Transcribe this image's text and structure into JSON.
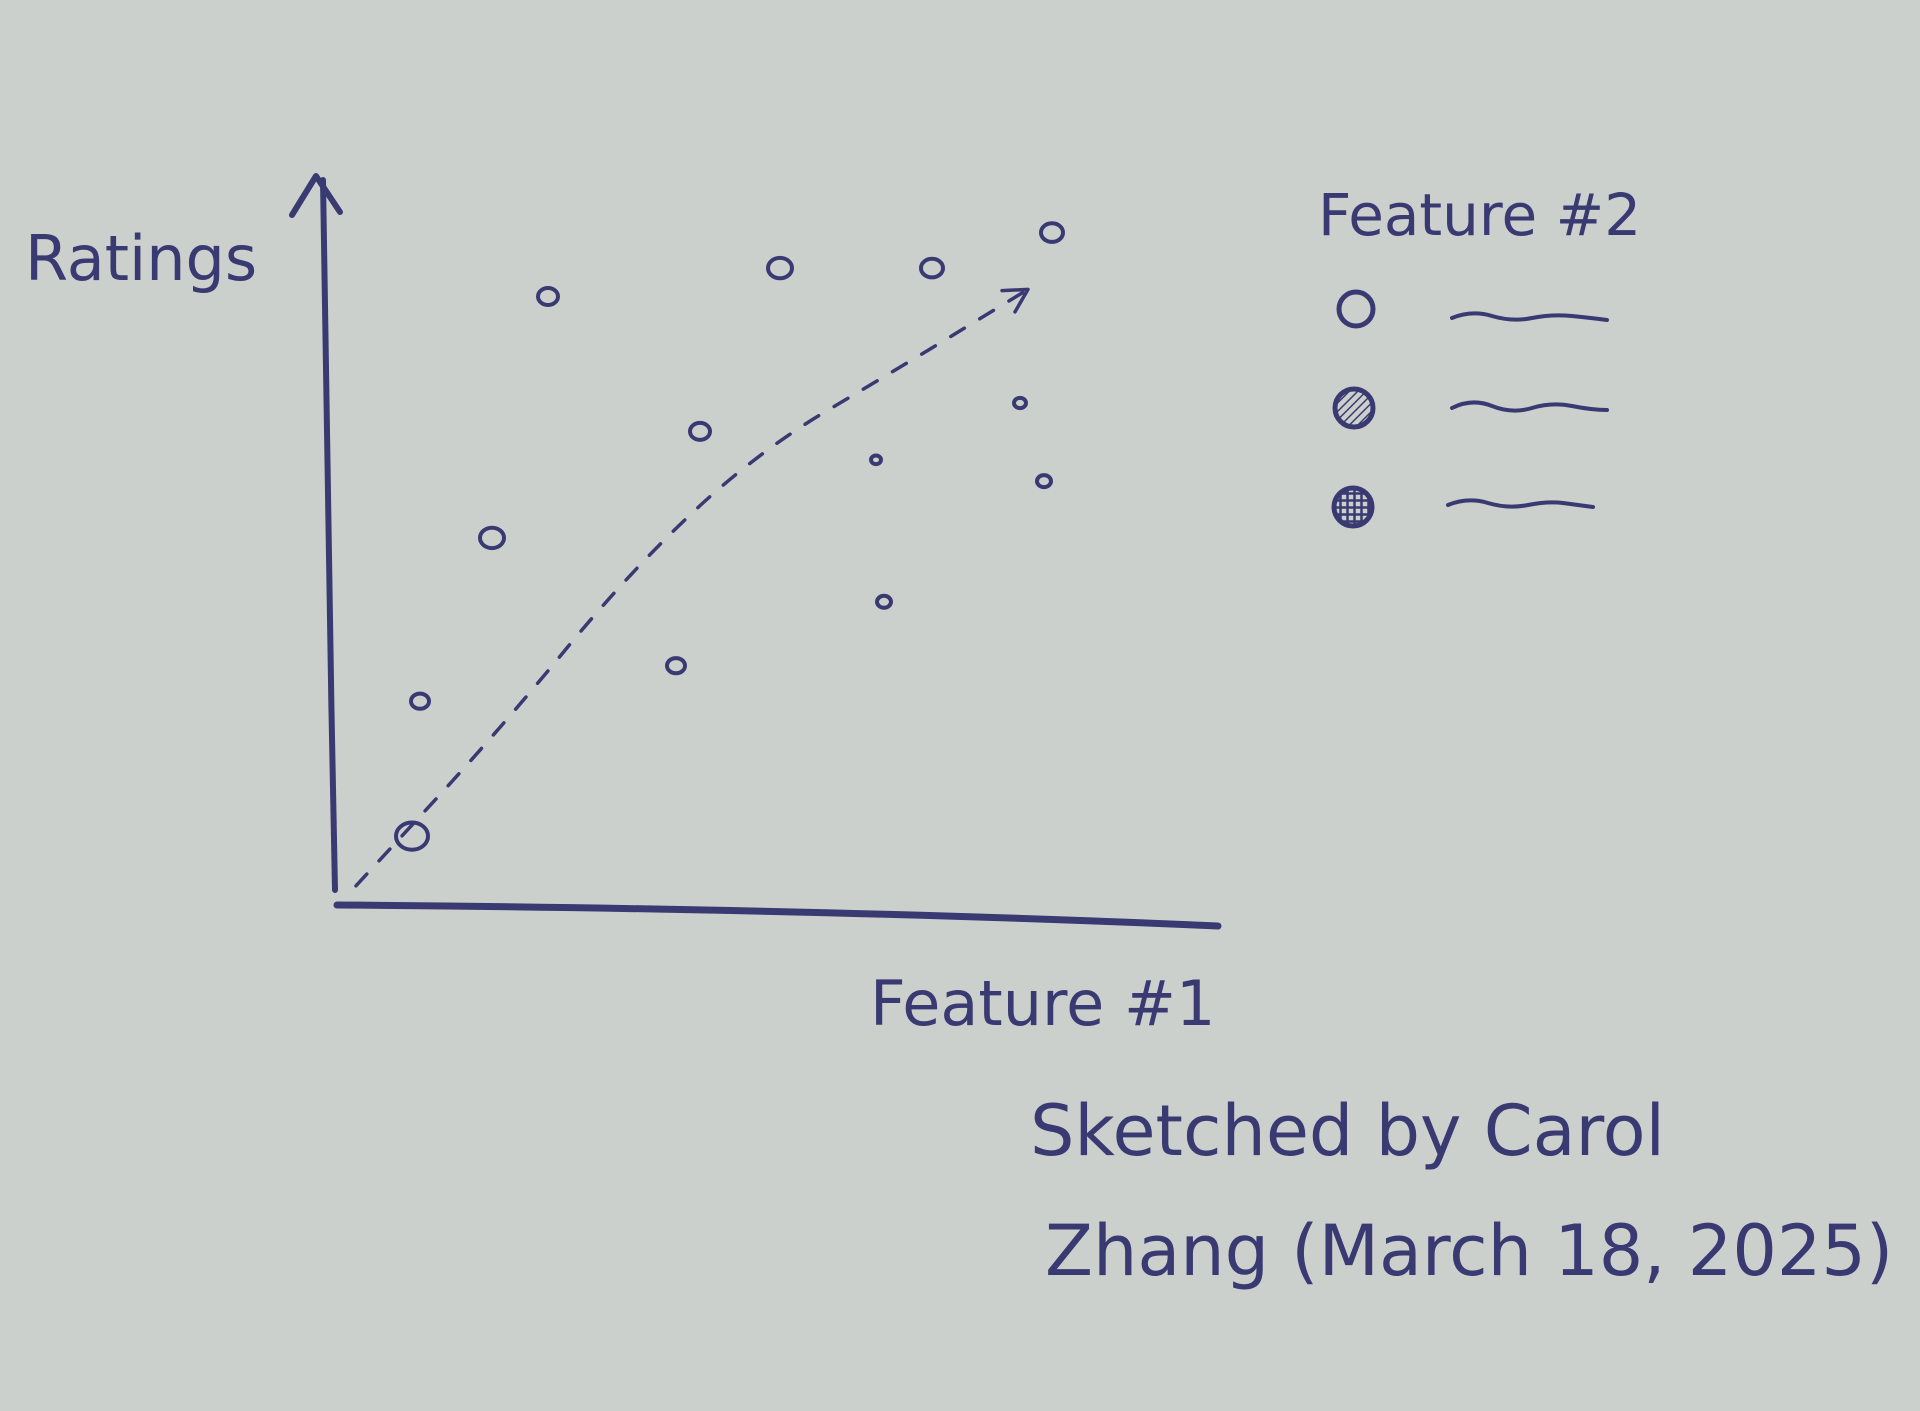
{
  "chart_data": {
    "type": "scatter",
    "title": "",
    "xlabel": "Feature #1",
    "ylabel": "Ratings",
    "xlim": [
      0,
      10
    ],
    "ylim": [
      0,
      10
    ],
    "grid": false,
    "points": [
      {
        "x": 0.9,
        "y": 0.9
      },
      {
        "x": 1.0,
        "y": 2.8
      },
      {
        "x": 1.9,
        "y": 5.1
      },
      {
        "x": 2.6,
        "y": 8.5
      },
      {
        "x": 4.2,
        "y": 3.3
      },
      {
        "x": 4.5,
        "y": 6.6
      },
      {
        "x": 5.5,
        "y": 8.9
      },
      {
        "x": 6.8,
        "y": 4.2
      },
      {
        "x": 6.7,
        "y": 6.2
      },
      {
        "x": 7.4,
        "y": 8.9
      },
      {
        "x": 8.5,
        "y": 7.0
      },
      {
        "x": 8.8,
        "y": 5.9
      },
      {
        "x": 8.9,
        "y": 9.4
      }
    ],
    "trend": [
      {
        "x": 0.2,
        "y": 0.2
      },
      {
        "x": 2.0,
        "y": 2.4
      },
      {
        "x": 3.6,
        "y": 4.6
      },
      {
        "x": 5.2,
        "y": 6.3
      },
      {
        "x": 7.0,
        "y": 7.5
      },
      {
        "x": 8.6,
        "y": 8.6
      }
    ],
    "legend": {
      "title": "Feature #2",
      "placement": "right",
      "entries": [
        {
          "marker": "open-circle"
        },
        {
          "marker": "hatched-circle"
        },
        {
          "marker": "crosshatched-circle"
        }
      ]
    }
  },
  "credit": {
    "line1": "Sketched by Carol",
    "line2": "Zhang (March 18, 2025)"
  },
  "colors": {
    "paper": "#ccd0cd",
    "ink": "#3a3a72"
  }
}
